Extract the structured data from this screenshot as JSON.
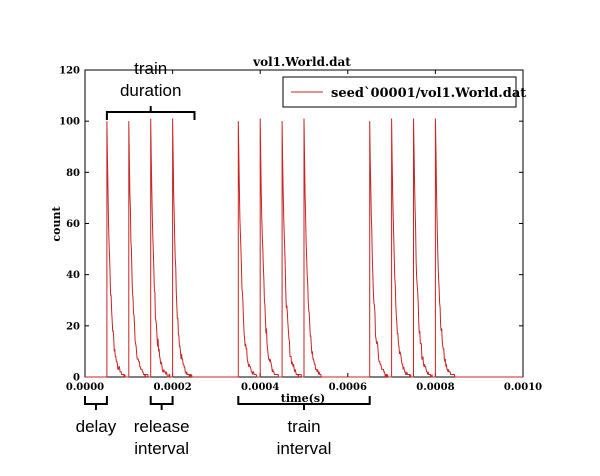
{
  "chart_data": {
    "type": "line",
    "title": "vol1.World.dat",
    "xlabel": "time(s)",
    "ylabel": "count",
    "xlim": [
      0.0,
      0.001
    ],
    "ylim": [
      0,
      120
    ],
    "x_ticks": [
      0.0,
      0.0002,
      0.0004,
      0.0006,
      0.0008,
      0.001
    ],
    "x_tick_labels": [
      "0.0000",
      "0.0002",
      "0.0004",
      "0.0006",
      "0.0008",
      "0.0010"
    ],
    "y_ticks": [
      0,
      20,
      40,
      60,
      80,
      100,
      120
    ],
    "y_tick_labels": [
      "0",
      "20",
      "40",
      "60",
      "80",
      "100",
      "120"
    ],
    "legend_position": "top-right",
    "series": [
      {
        "name": "seed`00001/vol1.World.dat",
        "color": "#cc2222",
        "pulse_times": [
          5e-05,
          0.0001,
          0.00015,
          0.0002,
          0.00035,
          0.0004,
          0.00045,
          0.0005,
          0.00065,
          0.0007,
          0.00075,
          0.0008
        ],
        "peak_values": [
          100,
          100,
          101,
          101,
          100,
          101,
          100,
          101,
          100,
          101,
          101,
          101
        ],
        "decay_time_constant": 8e-06
      }
    ],
    "annotations": [
      {
        "id": "train-duration",
        "lines": [
          "train",
          "duration"
        ],
        "from": 5e-05,
        "to": 0.00025,
        "placement": "above"
      },
      {
        "id": "delay",
        "lines": [
          "delay"
        ],
        "from": 0.0,
        "to": 5e-05,
        "placement": "below"
      },
      {
        "id": "release-interval",
        "lines": [
          "release",
          "interval"
        ],
        "from": 0.00015,
        "to": 0.0002,
        "placement": "below"
      },
      {
        "id": "train-interval",
        "lines": [
          "train",
          "interval"
        ],
        "from": 0.00035,
        "to": 0.00065,
        "placement": "below"
      }
    ]
  }
}
